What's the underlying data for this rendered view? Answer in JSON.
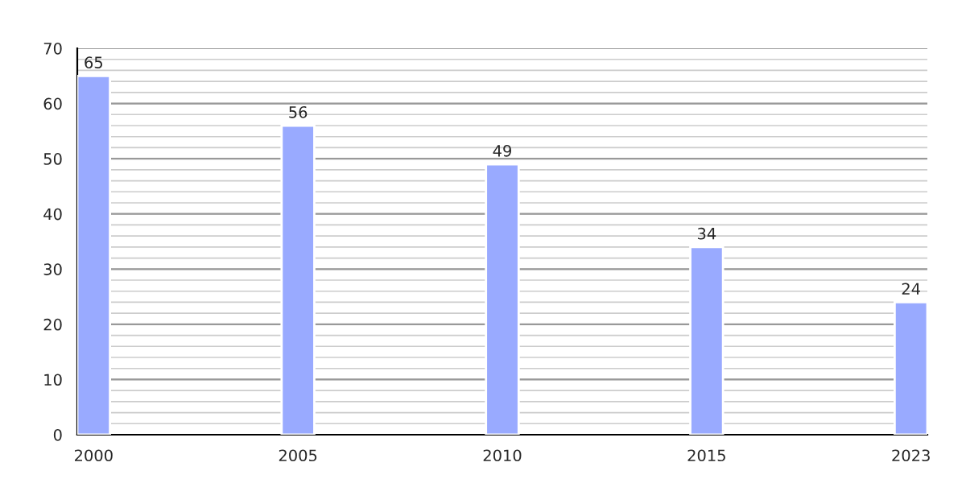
{
  "chart_data": {
    "type": "bar",
    "categories": [
      "2000",
      "2005",
      "2010",
      "2015",
      "2023"
    ],
    "values": [
      65,
      56,
      49,
      34,
      24
    ],
    "color": "#99aaff",
    "data_labels": true,
    "ylim": [
      0,
      70
    ],
    "yticks": [
      0,
      {
        "value": 2,
        "label": null
      },
      {
        "value": 4,
        "label": null
      },
      {
        "value": 6,
        "label": null
      },
      {
        "value": 8,
        "label": null
      },
      10,
      {
        "value": 12,
        "label": null
      },
      {
        "value": 14,
        "label": null
      },
      {
        "value": 16,
        "label": null
      },
      {
        "value": 18,
        "label": null
      },
      20,
      {
        "value": 22,
        "label": null
      },
      {
        "value": 24,
        "label": null
      },
      {
        "value": 26,
        "label": null
      },
      {
        "value": 28,
        "label": null
      },
      30,
      {
        "value": 32,
        "label": null
      },
      {
        "value": 34,
        "label": null
      },
      {
        "value": 36,
        "label": null
      },
      {
        "value": 38,
        "label": null
      },
      40,
      {
        "value": 42,
        "label": null
      },
      {
        "value": 44,
        "label": null
      },
      {
        "value": 46,
        "label": null
      },
      {
        "value": 48,
        "label": null
      },
      50,
      {
        "value": 52,
        "label": null
      },
      {
        "value": 54,
        "label": null
      },
      {
        "value": 56,
        "label": null
      },
      {
        "value": 58,
        "label": null
      },
      60,
      {
        "value": 62,
        "label": null
      },
      {
        "value": 64,
        "label": null
      },
      {
        "value": 66,
        "label": null
      },
      {
        "value": 68,
        "label": null
      },
      70
    ],
    "grid": "y"
  }
}
